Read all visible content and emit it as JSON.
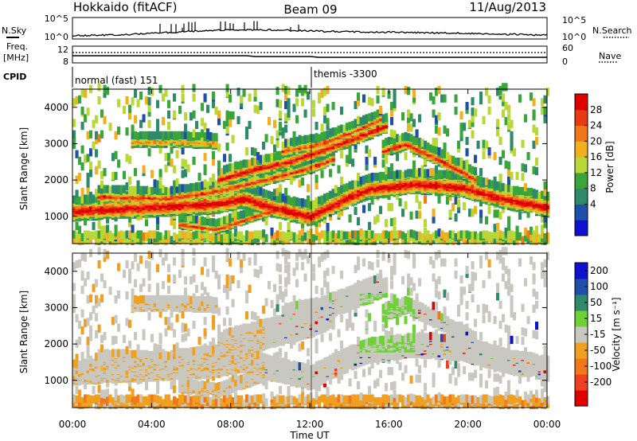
{
  "header": {
    "station": "Hokkaido (fitACF)",
    "beam": "Beam 09",
    "date": "11/Aug/2013"
  },
  "top_panels": {
    "nsky_label": "N.Sky",
    "nsky_ticks": [
      "10^5",
      "10^0"
    ],
    "nsearch_label": "N.Search",
    "nsearch_ticks": [
      "10^5",
      "10^0"
    ],
    "freq_label": "Freq.",
    "freq_unit": "[MHz]",
    "freq_ticks": [
      "12",
      "8"
    ],
    "nave_label": "Nave",
    "nave_ticks": [
      "60",
      "0"
    ],
    "cpid_label": "CPID",
    "cpid_segments": [
      "normal (fast) 151",
      "themis -3300"
    ]
  },
  "chart_data": {
    "type": "heatmap",
    "x_axis": {
      "label": "Time UT",
      "ticks": [
        "00:00",
        "04:00",
        "08:00",
        "12:00",
        "16:00",
        "20:00",
        "00:00"
      ]
    },
    "panels": [
      {
        "name": "power",
        "ylabel": "Slant Range [km]",
        "y_ticks": [
          1000,
          2000,
          3000,
          4000
        ],
        "ylim": [
          250,
          4500
        ],
        "colorbar_label": "Power [dB]",
        "colorbar_ticks": [
          "28",
          "24",
          "20",
          "16",
          "12",
          "8",
          "4"
        ],
        "colors": [
          "#1010d0",
          "#1f4fa8",
          "#2e8a6a",
          "#3aa53a",
          "#b8d838",
          "#f0b020",
          "#f07818",
          "#e83c10",
          "#e00000"
        ]
      },
      {
        "name": "velocity",
        "ylabel": "Slant Range [km]",
        "y_ticks": [
          1000,
          2000,
          3000,
          4000
        ],
        "ylim": [
          250,
          4500
        ],
        "colorbar_label": "Velocity [m s⁻¹]",
        "colorbar_ticks": [
          "200",
          "100",
          "50",
          "15",
          "-15",
          "-50",
          "-100",
          "-200"
        ],
        "colors": [
          "#e00000",
          "#f04020",
          "#f07818",
          "#f0a020",
          "#c8c8c0",
          "#6fd038",
          "#2e8a6a",
          "#1f4fa8",
          "#1010d0"
        ]
      }
    ]
  }
}
